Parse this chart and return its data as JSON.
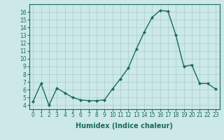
{
  "x": [
    0,
    1,
    2,
    3,
    4,
    5,
    6,
    7,
    8,
    9,
    10,
    11,
    12,
    13,
    14,
    15,
    16,
    17,
    18,
    19,
    20,
    21,
    22,
    23
  ],
  "y": [
    4.5,
    6.8,
    4.0,
    6.2,
    5.6,
    5.0,
    4.7,
    4.6,
    4.6,
    4.7,
    6.1,
    7.4,
    8.8,
    11.2,
    13.4,
    15.3,
    16.2,
    16.1,
    13.0,
    9.0,
    9.2,
    6.8,
    6.8,
    6.1
  ],
  "line_color": "#1a6b5a",
  "marker": "D",
  "marker_size": 2,
  "bg_color": "#cce8e8",
  "grid_color": "#aacccc",
  "xlabel": "Humidex (Indice chaleur)",
  "xlim": [
    -0.5,
    23.5
  ],
  "ylim": [
    3.5,
    17
  ],
  "yticks": [
    4,
    5,
    6,
    7,
    8,
    9,
    10,
    11,
    12,
    13,
    14,
    15,
    16
  ],
  "xticks": [
    0,
    1,
    2,
    3,
    4,
    5,
    6,
    7,
    8,
    9,
    10,
    11,
    12,
    13,
    14,
    15,
    16,
    17,
    18,
    19,
    20,
    21,
    22,
    23
  ],
  "tick_label_fontsize": 5.5,
  "xlabel_fontsize": 7,
  "line_width": 1.0
}
